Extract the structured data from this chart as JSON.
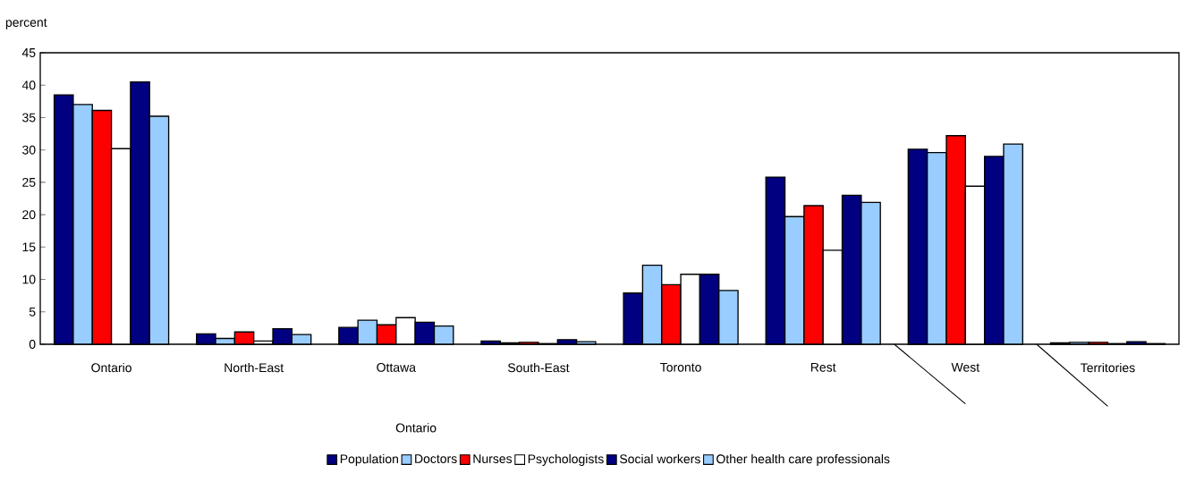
{
  "chart_data": {
    "type": "bar",
    "ylabel": "percent",
    "categories": [
      "Ontario",
      "North-East",
      "Ottawa",
      "South-East",
      "Toronto",
      "Rest",
      "West",
      "Territories"
    ],
    "annotations": [
      "Ontario"
    ],
    "series": [
      {
        "name": "Population",
        "color": "#000080",
        "values": [
          38.5,
          1.6,
          2.6,
          0.5,
          7.9,
          25.8,
          30.1,
          0.2
        ]
      },
      {
        "name": "Doctors",
        "color": "#99ccff",
        "values": [
          37.0,
          0.9,
          3.7,
          0.2,
          12.2,
          19.7,
          29.6,
          0.3
        ]
      },
      {
        "name": "Nurses",
        "color": "#ff0000",
        "values": [
          36.1,
          1.9,
          3.0,
          0.3,
          9.2,
          21.4,
          32.2,
          0.3
        ]
      },
      {
        "name": "Psychologists",
        "color": "#ffffff",
        "values": [
          30.2,
          0.5,
          4.1,
          0.1,
          10.8,
          14.5,
          24.4,
          0.1
        ]
      },
      {
        "name": "Social workers",
        "color": "#000080",
        "values": [
          40.5,
          2.4,
          3.4,
          0.7,
          10.8,
          23.0,
          29.0,
          0.4
        ]
      },
      {
        "name": "Other health care professionals",
        "color": "#99ccff",
        "values": [
          35.2,
          1.5,
          2.8,
          0.4,
          8.3,
          21.9,
          30.9,
          0.1
        ]
      }
    ],
    "ylim": [
      0,
      45
    ],
    "yticks": [
      0,
      5,
      10,
      15,
      20,
      25,
      30,
      35,
      40,
      45
    ],
    "grid": false,
    "legend": "bottom"
  }
}
